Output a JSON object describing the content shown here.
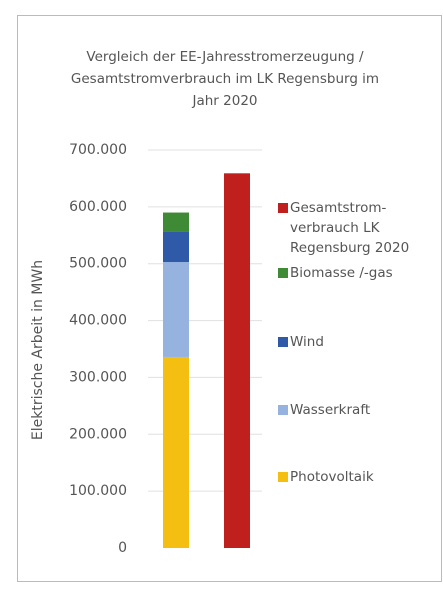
{
  "chart_data": {
    "type": "stacked_bar",
    "title": "Vergleich der EE-Jahresstromerzeugung / Gesamtstromverbrauch im LK Regensburg im Jahr 2020",
    "y_label": "Elektrische Arbeit in MWh",
    "categories": [
      null,
      null
    ],
    "series": [
      {
        "name": "Photovoltaik",
        "color": "#f5bf12",
        "values": [
          336000,
          null
        ]
      },
      {
        "name": "Wasserkraft",
        "color": "#95b3de",
        "values": [
          167000,
          null
        ]
      },
      {
        "name": "Wind",
        "color": "#2e5aa8",
        "values": [
          54000,
          null
        ]
      },
      {
        "name": "Biomasse /-gas",
        "color": "#3f8a35",
        "values": [
          33000,
          null
        ]
      },
      {
        "name": "Gesamtstrom-verbrauch LK Regensburg 2020",
        "color": "#c0201d",
        "values": [
          null,
          659000
        ]
      }
    ],
    "ylim": [
      0,
      700000
    ],
    "yticks": [
      0,
      {
        "value": 100000,
        "label": "100.000"
      },
      {
        "value": 200000,
        "label": "200.000"
      },
      {
        "value": 300000,
        "label": "300.000"
      },
      {
        "value": 400000,
        "label": "400.000"
      },
      {
        "value": 500000,
        "label": "500.000"
      },
      {
        "value": 600000,
        "label": "600.000"
      },
      {
        "value": 700000,
        "label": "700.000"
      }
    ],
    "grid": true,
    "legend": "right"
  }
}
